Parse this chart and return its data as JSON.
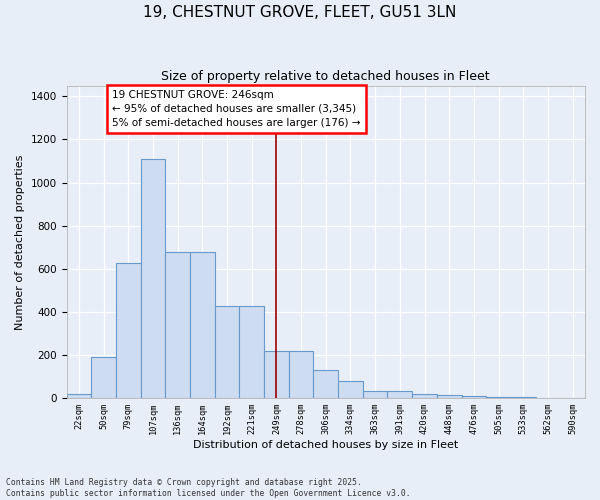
{
  "title": "19, CHESTNUT GROVE, FLEET, GU51 3LN",
  "subtitle": "Size of property relative to detached houses in Fleet",
  "xlabel": "Distribution of detached houses by size in Fleet",
  "ylabel": "Number of detached properties",
  "bar_color": "#cddcf0",
  "bar_edge_color": "#6699cc",
  "background_color": "#e8eef8",
  "fig_background_color": "#e8eef8",
  "grid_color": "#c8d0e0",
  "bins": [
    "22sqm",
    "50sqm",
    "79sqm",
    "107sqm",
    "136sqm",
    "164sqm",
    "192sqm",
    "221sqm",
    "249sqm",
    "278sqm",
    "306sqm",
    "334sqm",
    "363sqm",
    "391sqm",
    "420sqm",
    "448sqm",
    "476sqm",
    "505sqm",
    "533sqm",
    "562sqm",
    "590sqm"
  ],
  "values": [
    18,
    190,
    625,
    1110,
    680,
    680,
    425,
    425,
    220,
    220,
    130,
    80,
    35,
    35,
    20,
    12,
    8,
    5,
    3,
    2,
    0
  ],
  "ylim": [
    0,
    1450
  ],
  "yticks": [
    0,
    200,
    400,
    600,
    800,
    1000,
    1200,
    1400
  ],
  "property_line_x": 8.5,
  "annotation_text": "19 CHESTNUT GROVE: 246sqm\n← 95% of detached houses are smaller (3,345)\n5% of semi-detached houses are larger (176) →",
  "footer_line1": "Contains HM Land Registry data © Crown copyright and database right 2025.",
  "footer_line2": "Contains public sector information licensed under the Open Government Licence v3.0."
}
